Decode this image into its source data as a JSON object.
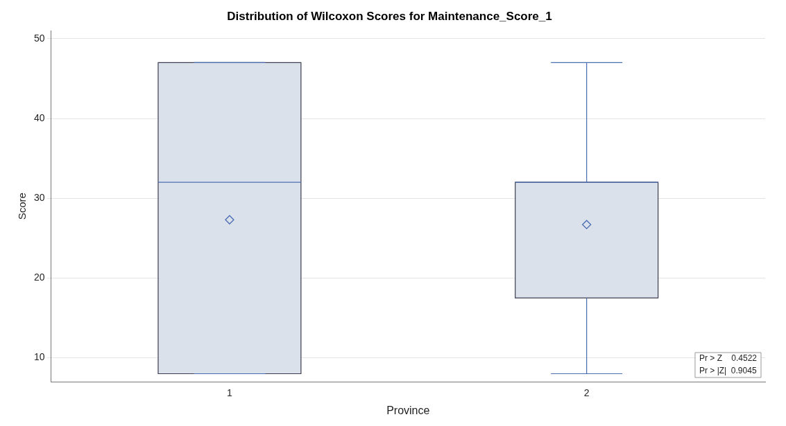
{
  "chart_data": {
    "type": "box",
    "title": "Distribution of Wilcoxon Scores for Maintenance_Score_1",
    "xlabel": "Province",
    "ylabel": "Score",
    "categories": [
      "1",
      "2"
    ],
    "boxes": [
      {
        "low": 8,
        "q1": 8,
        "median": 32,
        "q3": 47,
        "high": 47,
        "mean": 27.3
      },
      {
        "low": 8,
        "q1": 17.5,
        "median": 32,
        "q3": 32,
        "high": 47,
        "mean": 26.7
      }
    ],
    "color": "#dae1eb",
    "ylim": [
      7,
      51
    ],
    "yticks": [
      10,
      20,
      30,
      40,
      50
    ],
    "grid": "y",
    "legend": false,
    "marker": "diamond",
    "annotations": [
      "Pr > Z    0.4522",
      "Pr > |Z|  0.9045"
    ]
  }
}
